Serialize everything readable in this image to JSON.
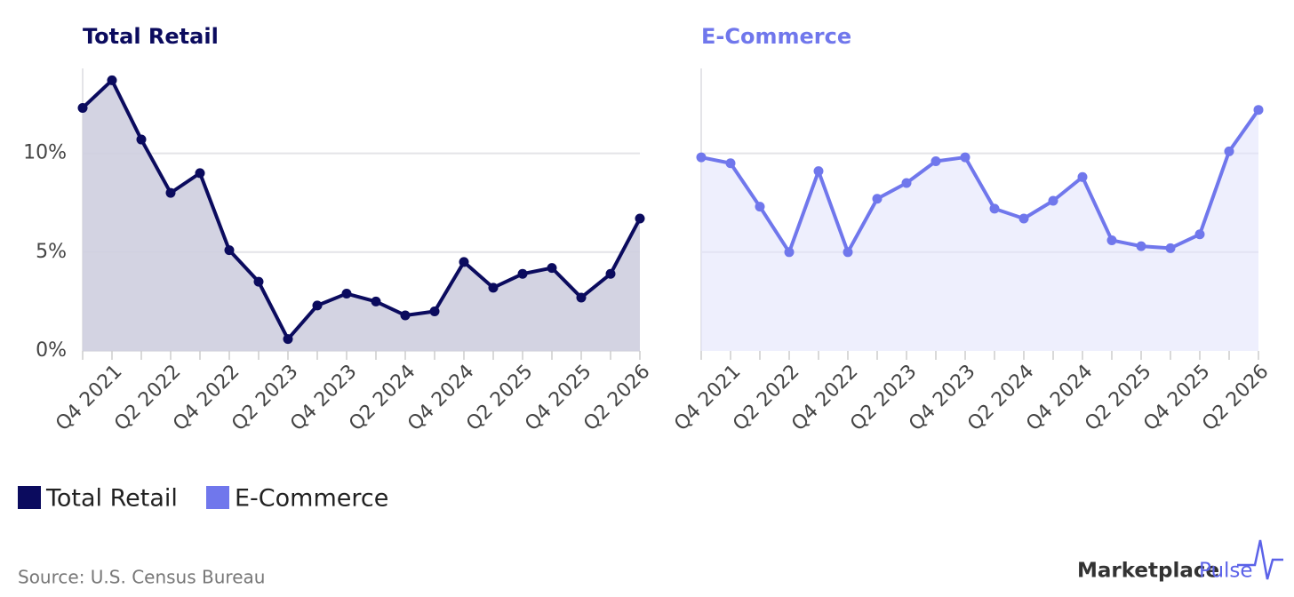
{
  "chart_data": [
    {
      "type": "line",
      "title": "Total Retail",
      "categories": [
        null,
        "Q4 2021",
        null,
        "Q2 2022",
        null,
        "Q4 2022",
        null,
        "Q2 2023",
        null,
        "Q4 2023",
        null,
        "Q2 2024",
        null,
        "Q4 2024",
        null,
        "Q2 2025",
        null,
        "Q4 2025",
        null,
        "Q2 2026"
      ],
      "series": [
        {
          "name": "Total Retail",
          "color": "#0b0b5e",
          "values": [
            12.3,
            13.7,
            10.7,
            8.0,
            9.0,
            5.1,
            3.5,
            0.6,
            2.3,
            2.9,
            2.5,
            1.8,
            2.0,
            4.5,
            3.2,
            3.9,
            4.2,
            2.7,
            3.9,
            6.7
          ]
        }
      ],
      "ylim": [
        0,
        14.3
      ],
      "yticks": [
        {
          "value": 0,
          "label": "0%"
        },
        {
          "value": 5,
          "label": "5%"
        },
        {
          "value": 10,
          "label": "10%"
        }
      ],
      "grid": true,
      "area": true
    },
    {
      "type": "line",
      "title": "E-Commerce",
      "categories": [
        null,
        "Q4 2021",
        null,
        "Q2 2022",
        null,
        "Q4 2022",
        null,
        "Q2 2023",
        null,
        "Q4 2023",
        null,
        "Q2 2024",
        null,
        "Q4 2024",
        null,
        "Q2 2025",
        null,
        "Q4 2025",
        null,
        "Q2 2026"
      ],
      "series": [
        {
          "name": "E-Commerce",
          "color": "#7077ec",
          "values": [
            9.8,
            9.5,
            7.3,
            5.0,
            9.1,
            5.0,
            7.7,
            8.5,
            9.6,
            9.8,
            7.2,
            6.7,
            7.6,
            8.8,
            5.6,
            5.3,
            5.2,
            5.9,
            10.1,
            12.2
          ]
        }
      ],
      "ylim": [
        0,
        14.3
      ],
      "yticks": [
        5,
        10
      ],
      "grid": true,
      "area": true
    }
  ],
  "source": "Source: U.S. Census Bureau",
  "brand": {
    "name": "Marketplace",
    "accent": "Pulse"
  }
}
